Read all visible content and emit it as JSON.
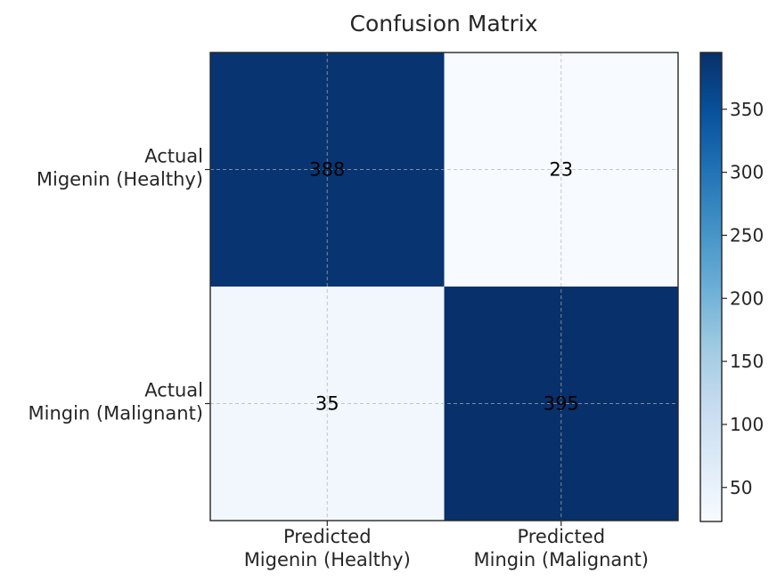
{
  "chart_data": {
    "type": "heatmap",
    "title": "Confusion Matrix",
    "row_labels": [
      [
        "Actual",
        "Migenin (Healthy)"
      ],
      [
        "Actual",
        "Mingin (Malignant)"
      ]
    ],
    "col_labels": [
      [
        "Predicted",
        "Migenin (Healthy)"
      ],
      [
        "Predicted",
        "Mingin (Malignant)"
      ]
    ],
    "values": [
      [
        388,
        23
      ],
      [
        35,
        395
      ]
    ],
    "colormap": "Blues",
    "colorbar": {
      "range": [
        23,
        395
      ],
      "ticks": [
        50,
        100,
        150,
        200,
        250,
        300,
        350
      ]
    },
    "grid": true,
    "colors": {
      "low": "#f7fbff",
      "high": "#08306b",
      "text": "#000000",
      "label": "#262626"
    }
  }
}
